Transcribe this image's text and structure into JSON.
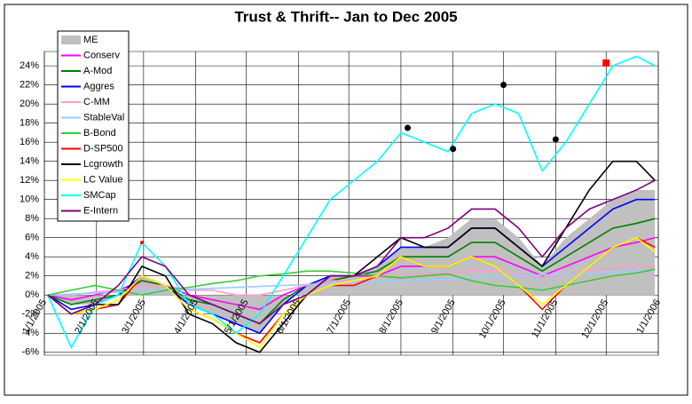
{
  "chart_data": {
    "type": "line",
    "title": "Trust & Thrift-- Jan  to Dec  2005",
    "x": [
      "1/3/2005",
      "1/17/2005",
      "1/31/2005",
      "2/14/2005",
      "2/28/2005",
      "3/14/2005",
      "3/28/2005",
      "4/11/2005",
      "4/25/2005",
      "5/9/2005",
      "5/23/2005",
      "6/6/2005",
      "6/20/2005",
      "7/4/2005",
      "7/18/2005",
      "8/1/2005",
      "8/15/2005",
      "8/29/2005",
      "9/12/2005",
      "9/26/2005",
      "10/10/2005",
      "10/24/2005",
      "11/7/2005",
      "11/21/2005",
      "12/5/2005",
      "12/19/2005",
      "12/30/2005"
    ],
    "xlim": [
      "1/1/2005",
      "1/1/2006"
    ],
    "xticks": [
      "1/1/2005",
      "2/1/2005",
      "3/1/2005",
      "4/1/2005",
      "5/1/2005",
      "6/1/2005",
      "7/1/2005",
      "8/1/2005",
      "9/1/2005",
      "10/1/2005",
      "11/1/2005",
      "12/1/2005",
      "1/1/2006"
    ],
    "ylim": [
      -6.3,
      25.5
    ],
    "yticks": [
      {
        "value": -6,
        "label": "-6%"
      },
      {
        "value": -4,
        "label": "-4%"
      },
      {
        "value": -2,
        "label": "-2%"
      },
      {
        "value": 0,
        "label": "0%"
      },
      {
        "value": 2,
        "label": "2%"
      },
      {
        "value": 4,
        "label": "4%"
      },
      {
        "value": 6,
        "label": "6%"
      },
      {
        "value": 8,
        "label": "8%"
      },
      {
        "value": 10,
        "label": "10%"
      },
      {
        "value": 12,
        "label": "12%"
      },
      {
        "value": 14,
        "label": "14%"
      },
      {
        "value": 16,
        "label": "16%"
      },
      {
        "value": 18,
        "label": "18%"
      },
      {
        "value": 20,
        "label": "20%"
      },
      {
        "value": 22,
        "label": "22%"
      },
      {
        "value": 24,
        "label": "24%"
      }
    ],
    "grid": true,
    "series": [
      {
        "name": "ME",
        "color": "#c0c0c0",
        "style": "area",
        "values": [
          0,
          -1,
          -1,
          0,
          2,
          1,
          -1,
          -2,
          -3,
          -4,
          -1,
          1,
          2,
          2,
          3,
          5,
          5,
          6,
          8,
          8,
          6,
          3,
          6,
          8,
          10,
          11,
          11
        ]
      },
      {
        "name": "Conserv",
        "color": "#ff00ff",
        "values": [
          0,
          -0.5,
          0,
          0.5,
          1.5,
          1,
          0,
          -0.5,
          -1,
          -1.5,
          0,
          1,
          1.5,
          2,
          2,
          3,
          3,
          3,
          4,
          4,
          3,
          2,
          3,
          4,
          5,
          5.5,
          6
        ]
      },
      {
        "name": "A-Mod",
        "color": "#008000",
        "values": [
          0,
          -1,
          -0.5,
          0,
          1.5,
          1,
          -0.5,
          -1,
          -2,
          -3,
          -0.5,
          1,
          1.5,
          2,
          2.5,
          4,
          4,
          4,
          5.5,
          5.5,
          4,
          2.5,
          4,
          5.5,
          7,
          7.5,
          8
        ]
      },
      {
        "name": "Aggres",
        "color": "#0000ff",
        "values": [
          0,
          -1.5,
          -1,
          0,
          2,
          1,
          -1,
          -2,
          -3,
          -4,
          -1,
          1,
          2,
          2,
          3,
          5,
          5,
          5,
          7,
          7,
          5,
          3,
          5,
          7,
          9,
          10,
          10
        ]
      },
      {
        "name": "C-MM",
        "color": "#ff99cc",
        "values": [
          0,
          0,
          0.3,
          0.5,
          1,
          1,
          0.5,
          0.5,
          0,
          0,
          0.5,
          1,
          1.5,
          1.5,
          1.8,
          2,
          2.2,
          2.3,
          2.5,
          2.5,
          2.2,
          1.8,
          2.2,
          2.5,
          2.8,
          3,
          3
        ]
      },
      {
        "name": "StableVal",
        "color": "#99ccff",
        "values": [
          0,
          0.1,
          0.2,
          0.3,
          0.4,
          0.5,
          0.6,
          0.7,
          0.8,
          0.9,
          1,
          1.1,
          1.2,
          1.3,
          1.4,
          1.5,
          1.6,
          1.7,
          1.8,
          1.9,
          2,
          2.1,
          2.2,
          2.3,
          2.4,
          2.5,
          2.6
        ]
      },
      {
        "name": "B-Bond",
        "color": "#33cc33",
        "values": [
          0,
          0.5,
          1,
          0.5,
          0,
          0.5,
          0.8,
          1.2,
          1.5,
          2,
          2.2,
          2.5,
          2.5,
          2.3,
          2,
          1.8,
          2,
          2.2,
          1.5,
          1,
          0.8,
          0.5,
          1,
          1.5,
          2,
          2.3,
          2.7
        ]
      },
      {
        "name": "D-SP500",
        "color": "#ff0000",
        "values": [
          0,
          -2,
          -1.5,
          -1,
          2,
          1,
          -1.5,
          -2.5,
          -4,
          -5,
          -2,
          0,
          1,
          1,
          2,
          4,
          3,
          3,
          4,
          3,
          1,
          -1.5,
          1,
          3,
          5,
          6,
          5
        ]
      },
      {
        "name": "Lcgrowth",
        "color": "#000000",
        "values": [
          0,
          -2,
          -1,
          -1,
          3,
          2,
          -2,
          -3,
          -5,
          -6,
          -3,
          0,
          2,
          2,
          4,
          6,
          5,
          5,
          7,
          7,
          5,
          3,
          7,
          11,
          14,
          14,
          12
        ]
      },
      {
        "name": "LC Value",
        "color": "#ffff00",
        "values": [
          0,
          -2,
          -1.5,
          -0.5,
          2,
          1,
          -1.5,
          -2.5,
          -4,
          -5.5,
          -2,
          0,
          1,
          1.5,
          2,
          4,
          3,
          3,
          4,
          3,
          1,
          -1,
          1,
          3,
          5,
          6,
          4.5
        ]
      },
      {
        "name": "SMCap",
        "color": "#00ffff",
        "values": [
          0,
          -5.5,
          -1,
          0,
          5.5,
          3,
          -1,
          -2,
          -4,
          -2,
          2,
          6,
          10,
          12,
          14,
          17,
          16,
          15,
          19,
          20,
          19,
          13,
          16,
          20,
          24,
          25,
          24
        ]
      },
      {
        "name": "E-Intern",
        "color": "#800080",
        "values": [
          0,
          -2,
          -1,
          1,
          4,
          3,
          0,
          -1,
          -2,
          -3,
          -1,
          0,
          2,
          2,
          3,
          6,
          6,
          7,
          9,
          9,
          7,
          4,
          7,
          9,
          10,
          11,
          12
        ]
      }
    ],
    "markers": [
      {
        "x": "2/28/2005",
        "y": 5.5,
        "color": "#ff0000"
      },
      {
        "x": "8/5/2005",
        "y": 17.5,
        "color": "#000000"
      },
      {
        "x": "9/1/2005",
        "y": 15.3,
        "color": "#000000"
      },
      {
        "x": "10/1/2005",
        "y": 22,
        "color": "#000000"
      },
      {
        "x": "11/1/2005",
        "y": 16.3,
        "color": "#000000"
      },
      {
        "x": "12/1/2005",
        "y": 24.3,
        "color": "#ff0000"
      }
    ]
  }
}
